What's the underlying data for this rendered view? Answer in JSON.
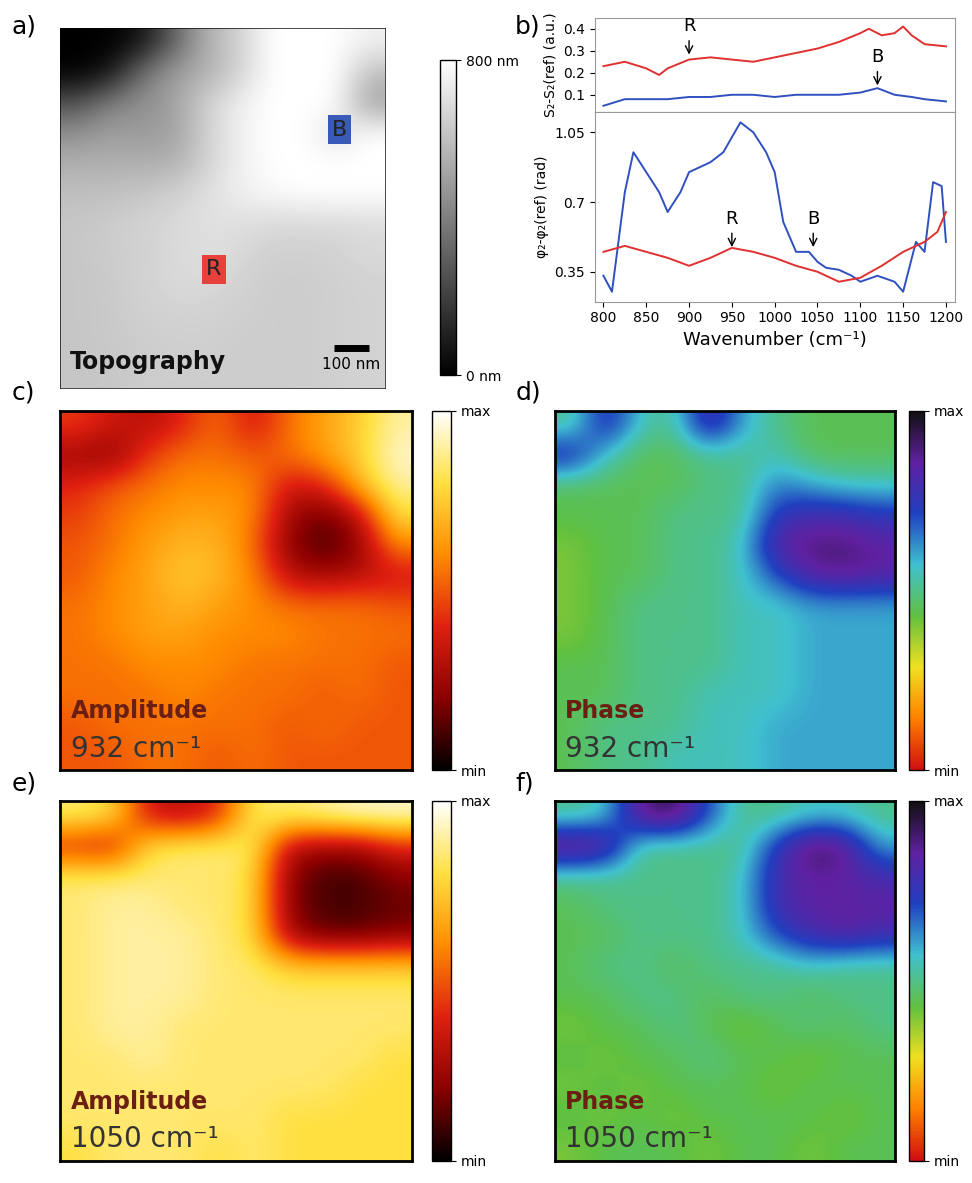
{
  "chart_data": [
    {
      "type": "image",
      "panel": "a)",
      "title": "Topography",
      "size_nm": [
        930,
        1030
      ],
      "cells": [
        [
          0,
          0,
          50,
          300,
          550,
          650,
          800,
          800,
          800,
          750
        ],
        [
          0,
          50,
          350,
          500,
          550,
          650,
          800,
          800,
          800,
          600
        ],
        [
          250,
          400,
          450,
          500,
          650,
          750,
          800,
          800,
          800,
          500
        ],
        [
          450,
          500,
          480,
          500,
          650,
          750,
          800,
          800,
          700,
          800
        ],
        [
          550,
          550,
          550,
          550,
          650,
          750,
          800,
          800,
          800,
          800
        ],
        [
          600,
          600,
          620,
          650,
          700,
          750,
          780,
          800,
          800,
          800
        ],
        [
          620,
          640,
          660,
          680,
          700,
          700,
          680,
          680,
          680,
          690
        ],
        [
          620,
          640,
          650,
          680,
          700,
          680,
          650,
          650,
          660,
          680
        ],
        [
          620,
          630,
          660,
          680,
          680,
          660,
          640,
          640,
          650,
          660
        ],
        [
          620,
          630,
          650,
          660,
          660,
          650,
          640,
          640,
          650,
          660
        ],
        [
          620,
          630,
          640,
          650,
          650,
          640,
          640,
          640,
          650,
          660
        ],
        [
          620,
          620,
          640,
          640,
          640,
          640,
          640,
          640,
          650,
          660
        ]
      ],
      "color_range": [
        0,
        800
      ],
      "color_ticks": [
        {
          "value": 0,
          "label": "0 nm"
        },
        {
          "value": 800,
          "label": "800 nm"
        }
      ],
      "scale_bar": {
        "length": 100,
        "label": "100 nm"
      },
      "markers": [
        {
          "label": "R",
          "color": "#e8403a",
          "x": 440,
          "y": 690
        },
        {
          "label": "B",
          "color": "#3a5ab8",
          "x": 800,
          "y": 290
        }
      ],
      "tick_labels": false
    },
    {
      "type": "line",
      "panel": "b)",
      "y_label": "S₂-S₂(ref) (a.u.)",
      "xlim": [
        790,
        1210
      ],
      "xticks": [
        800,
        850,
        900,
        950,
        1000,
        1050,
        1100,
        1150,
        1200
      ],
      "ylim": [
        0.02,
        0.45
      ],
      "yticks": [
        0.1,
        0.2,
        0.3,
        0.4
      ],
      "tick_labels": "y",
      "series": [
        {
          "color": "#e03030",
          "x": [
            800,
            825,
            850,
            865,
            875,
            900,
            925,
            950,
            975,
            1000,
            1025,
            1050,
            1075,
            1100,
            1110,
            1125,
            1140,
            1150,
            1160,
            1175,
            1200
          ],
          "values": [
            0.23,
            0.25,
            0.22,
            0.19,
            0.22,
            0.26,
            0.27,
            0.26,
            0.25,
            0.27,
            0.29,
            0.31,
            0.34,
            0.38,
            0.4,
            0.37,
            0.38,
            0.41,
            0.37,
            0.33,
            0.32
          ]
        },
        {
          "color": "#3050c0",
          "x": [
            800,
            825,
            850,
            875,
            900,
            925,
            950,
            975,
            1000,
            1025,
            1050,
            1075,
            1100,
            1120,
            1140,
            1160,
            1175,
            1200
          ],
          "values": [
            0.05,
            0.08,
            0.08,
            0.08,
            0.09,
            0.09,
            0.1,
            0.1,
            0.09,
            0.1,
            0.1,
            0.1,
            0.11,
            0.13,
            0.1,
            0.09,
            0.08,
            0.07
          ]
        }
      ],
      "annotations": [
        {
          "text": "R",
          "x": 900,
          "y": 0.27
        },
        {
          "text": "B",
          "x": 1120,
          "y": 0.13
        }
      ]
    },
    {
      "type": "line",
      "y_label": "φ₂-φ₂(ref) (rad)",
      "x_label": "Wavenumber (cm⁻¹)",
      "xlim": [
        790,
        1210
      ],
      "xticks": [
        800,
        850,
        900,
        950,
        1000,
        1050,
        1100,
        1150,
        1200
      ],
      "ylim": [
        0.2,
        1.15
      ],
      "yticks": [
        0.35,
        0.7,
        1.05
      ],
      "series": [
        {
          "color": "#3050c0",
          "x": [
            800,
            810,
            825,
            835,
            850,
            865,
            875,
            890,
            900,
            925,
            940,
            960,
            975,
            990,
            1000,
            1010,
            1025,
            1040,
            1050,
            1060,
            1075,
            1090,
            1100,
            1120,
            1140,
            1150,
            1165,
            1175,
            1185,
            1195,
            1200
          ],
          "values": [
            0.33,
            0.25,
            0.75,
            0.95,
            0.85,
            0.75,
            0.65,
            0.75,
            0.85,
            0.9,
            0.95,
            1.1,
            1.05,
            0.95,
            0.85,
            0.6,
            0.45,
            0.45,
            0.4,
            0.37,
            0.36,
            0.33,
            0.3,
            0.33,
            0.3,
            0.25,
            0.5,
            0.45,
            0.8,
            0.78,
            0.5
          ]
        },
        {
          "color": "#e03030",
          "x": [
            800,
            825,
            850,
            875,
            900,
            925,
            950,
            975,
            1000,
            1025,
            1050,
            1075,
            1100,
            1125,
            1150,
            1175,
            1190,
            1200
          ],
          "values": [
            0.45,
            0.48,
            0.45,
            0.42,
            0.38,
            0.42,
            0.47,
            0.45,
            0.42,
            0.38,
            0.35,
            0.3,
            0.32,
            0.38,
            0.45,
            0.5,
            0.55,
            0.65
          ]
        }
      ],
      "annotations": [
        {
          "text": "R",
          "x": 950,
          "y": 0.46
        },
        {
          "text": "B",
          "x": 1045,
          "y": 0.46
        }
      ]
    },
    {
      "type": "heatmap",
      "panel": "c)",
      "title": "Amplitude",
      "subtitle": "932 cm⁻¹",
      "cells": [
        [
          0.45,
          0.35,
          0.3,
          0.4,
          0.55,
          0.35,
          0.55,
          0.65,
          0.75,
          0.9
        ],
        [
          0.25,
          0.2,
          0.45,
          0.55,
          0.55,
          0.5,
          0.55,
          0.65,
          0.75,
          0.95
        ],
        [
          0.4,
          0.5,
          0.55,
          0.6,
          0.6,
          0.6,
          0.35,
          0.4,
          0.7,
          0.9
        ],
        [
          0.45,
          0.55,
          0.6,
          0.65,
          0.65,
          0.6,
          0.25,
          0.15,
          0.3,
          0.8
        ],
        [
          0.5,
          0.55,
          0.65,
          0.7,
          0.7,
          0.55,
          0.2,
          0.1,
          0.2,
          0.6
        ],
        [
          0.5,
          0.6,
          0.65,
          0.75,
          0.7,
          0.6,
          0.3,
          0.25,
          0.3,
          0.35
        ],
        [
          0.55,
          0.6,
          0.65,
          0.7,
          0.65,
          0.6,
          0.55,
          0.55,
          0.55,
          0.5
        ],
        [
          0.55,
          0.6,
          0.65,
          0.65,
          0.6,
          0.6,
          0.6,
          0.55,
          0.55,
          0.55
        ],
        [
          0.55,
          0.55,
          0.6,
          0.6,
          0.6,
          0.55,
          0.55,
          0.55,
          0.55,
          0.5
        ],
        [
          0.55,
          0.55,
          0.55,
          0.6,
          0.55,
          0.55,
          0.55,
          0.5,
          0.55,
          0.5
        ],
        [
          0.5,
          0.55,
          0.55,
          0.55,
          0.55,
          0.55,
          0.5,
          0.55,
          0.5,
          0.5
        ],
        [
          0.5,
          0.5,
          0.55,
          0.55,
          0.5,
          0.55,
          0.5,
          0.5,
          0.5,
          0.5
        ]
      ],
      "color_range": [
        0,
        1
      ],
      "color_ticks": [
        {
          "value": 0,
          "label": "min"
        },
        {
          "value": 1,
          "label": "max"
        }
      ],
      "tick_labels": false
    },
    {
      "type": "heatmap",
      "panel": "d)",
      "title": "Phase",
      "subtitle": "932 cm⁻¹",
      "cells": [
        [
          0.5,
          0.8,
          0.55,
          0.5,
          0.85,
          0.6,
          0.5,
          0.45,
          0.45,
          0.45
        ],
        [
          0.8,
          0.55,
          0.45,
          0.45,
          0.5,
          0.5,
          0.55,
          0.45,
          0.45,
          0.45
        ],
        [
          0.45,
          0.45,
          0.45,
          0.45,
          0.5,
          0.5,
          0.65,
          0.6,
          0.55,
          0.55
        ],
        [
          0.45,
          0.45,
          0.45,
          0.5,
          0.5,
          0.5,
          0.75,
          0.8,
          0.8,
          0.75
        ],
        [
          0.4,
          0.45,
          0.45,
          0.5,
          0.5,
          0.55,
          0.85,
          0.9,
          0.9,
          0.85
        ],
        [
          0.4,
          0.45,
          0.45,
          0.5,
          0.5,
          0.55,
          0.7,
          0.85,
          0.88,
          0.85
        ],
        [
          0.4,
          0.45,
          0.5,
          0.5,
          0.5,
          0.55,
          0.55,
          0.6,
          0.6,
          0.6
        ],
        [
          0.4,
          0.45,
          0.5,
          0.5,
          0.5,
          0.55,
          0.55,
          0.6,
          0.6,
          0.6
        ],
        [
          0.45,
          0.45,
          0.5,
          0.5,
          0.5,
          0.55,
          0.55,
          0.6,
          0.6,
          0.6
        ],
        [
          0.45,
          0.45,
          0.5,
          0.5,
          0.55,
          0.55,
          0.55,
          0.6,
          0.6,
          0.6
        ],
        [
          0.45,
          0.5,
          0.5,
          0.5,
          0.55,
          0.55,
          0.6,
          0.6,
          0.6,
          0.6
        ],
        [
          0.45,
          0.5,
          0.5,
          0.55,
          0.55,
          0.55,
          0.6,
          0.6,
          0.6,
          0.6
        ]
      ],
      "color_range": [
        0,
        1
      ],
      "color_ticks": [
        {
          "value": 0,
          "label": "min"
        },
        {
          "value": 1,
          "label": "max"
        }
      ],
      "tick_labels": false
    },
    {
      "type": "heatmap",
      "panel": "e)",
      "title": "Amplitude",
      "subtitle": "1050 cm⁻¹",
      "cells": [
        [
          0.85,
          0.8,
          0.35,
          0.3,
          0.4,
          0.85,
          0.85,
          0.9,
          0.95,
          0.95
        ],
        [
          0.4,
          0.35,
          0.8,
          0.85,
          0.85,
          0.85,
          0.3,
          0.25,
          0.25,
          0.4
        ],
        [
          0.85,
          0.85,
          0.85,
          0.85,
          0.85,
          0.8,
          0.2,
          0.1,
          0.1,
          0.2
        ],
        [
          0.85,
          0.9,
          0.9,
          0.85,
          0.85,
          0.8,
          0.2,
          0.1,
          0.1,
          0.15
        ],
        [
          0.85,
          0.9,
          0.9,
          0.9,
          0.85,
          0.8,
          0.25,
          0.15,
          0.15,
          0.2
        ],
        [
          0.85,
          0.9,
          0.9,
          0.9,
          0.85,
          0.85,
          0.75,
          0.75,
          0.75,
          0.75
        ],
        [
          0.85,
          0.9,
          0.9,
          0.9,
          0.85,
          0.85,
          0.85,
          0.85,
          0.85,
          0.85
        ],
        [
          0.85,
          0.9,
          0.9,
          0.85,
          0.85,
          0.85,
          0.85,
          0.85,
          0.85,
          0.85
        ],
        [
          0.85,
          0.85,
          0.9,
          0.85,
          0.85,
          0.85,
          0.85,
          0.85,
          0.85,
          0.8
        ],
        [
          0.85,
          0.85,
          0.85,
          0.85,
          0.85,
          0.85,
          0.85,
          0.85,
          0.8,
          0.8
        ],
        [
          0.85,
          0.85,
          0.85,
          0.85,
          0.85,
          0.85,
          0.8,
          0.8,
          0.8,
          0.8
        ],
        [
          0.8,
          0.85,
          0.85,
          0.85,
          0.8,
          0.85,
          0.8,
          0.8,
          0.8,
          0.8
        ]
      ],
      "color_range": [
        0,
        1
      ],
      "color_ticks": [
        {
          "value": 0,
          "label": "min"
        },
        {
          "value": 1,
          "label": "max"
        }
      ],
      "tick_labels": false
    },
    {
      "type": "heatmap",
      "panel": "f)",
      "title": "Phase",
      "subtitle": "1050 cm⁻¹",
      "cells": [
        [
          0.5,
          0.55,
          0.9,
          0.95,
          0.7,
          0.5,
          0.5,
          0.55,
          0.55,
          0.5
        ],
        [
          0.95,
          0.9,
          0.5,
          0.5,
          0.5,
          0.5,
          0.75,
          0.95,
          0.9,
          0.6
        ],
        [
          0.5,
          0.5,
          0.5,
          0.5,
          0.5,
          0.55,
          0.8,
          0.85,
          0.85,
          0.8
        ],
        [
          0.45,
          0.5,
          0.5,
          0.5,
          0.5,
          0.55,
          0.8,
          0.85,
          0.85,
          0.85
        ],
        [
          0.45,
          0.45,
          0.5,
          0.5,
          0.5,
          0.55,
          0.7,
          0.8,
          0.85,
          0.8
        ],
        [
          0.45,
          0.5,
          0.5,
          0.45,
          0.5,
          0.5,
          0.5,
          0.55,
          0.5,
          0.5
        ],
        [
          0.45,
          0.45,
          0.5,
          0.5,
          0.45,
          0.5,
          0.5,
          0.45,
          0.5,
          0.5
        ],
        [
          0.4,
          0.45,
          0.45,
          0.5,
          0.45,
          0.4,
          0.45,
          0.5,
          0.45,
          0.5
        ],
        [
          0.45,
          0.4,
          0.45,
          0.45,
          0.5,
          0.45,
          0.45,
          0.4,
          0.45,
          0.45
        ],
        [
          0.4,
          0.45,
          0.4,
          0.45,
          0.45,
          0.45,
          0.4,
          0.45,
          0.45,
          0.45
        ],
        [
          0.45,
          0.4,
          0.45,
          0.4,
          0.45,
          0.45,
          0.45,
          0.45,
          0.4,
          0.45
        ],
        [
          0.4,
          0.45,
          0.45,
          0.45,
          0.4,
          0.45,
          0.45,
          0.4,
          0.45,
          0.45
        ]
      ],
      "color_range": [
        0,
        1
      ],
      "color_ticks": [
        {
          "value": 0,
          "label": "min"
        },
        {
          "value": 1,
          "label": "max"
        }
      ],
      "tick_labels": false
    }
  ]
}
